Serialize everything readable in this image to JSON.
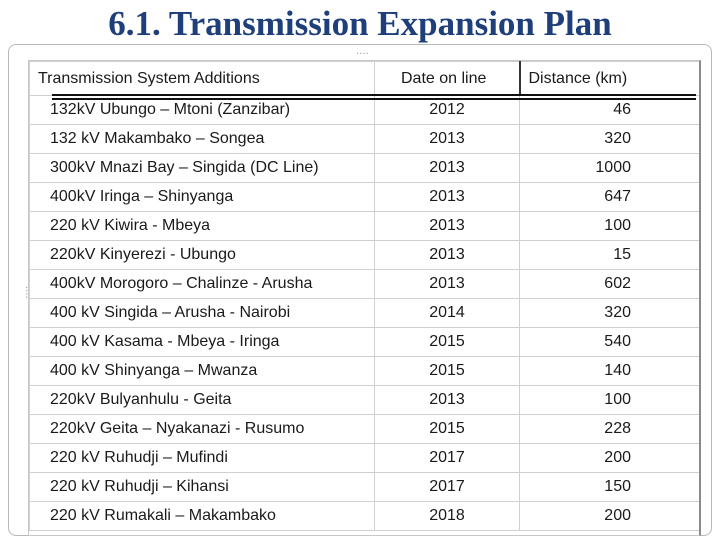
{
  "slide": {
    "title": "6.1. Transmission Expansion Plan"
  },
  "table": {
    "headers": [
      "Transmission System Additions",
      "Date on line",
      "Distance (km)"
    ],
    "rows": [
      [
        "132kV Ubungo – Mtoni (Zanzibar)",
        "2012",
        "46"
      ],
      [
        "132 kV Makambako – Songea",
        "2013",
        "320"
      ],
      [
        "300kV Mnazi Bay – Singida (DC Line)",
        "2013",
        "1000"
      ],
      [
        "400kV Iringa – Shinyanga",
        "2013",
        "647"
      ],
      [
        "220 kV Kiwira - Mbeya",
        "2013",
        "100"
      ],
      [
        " 220kV Kinyerezi - Ubungo",
        "2013",
        "15"
      ],
      [
        "400kV Morogoro – Chalinze - Arusha",
        "2013",
        "602"
      ],
      [
        "400 kV  Singida – Arusha - Nairobi",
        "2014",
        "320"
      ],
      [
        "400 kV  Kasama - Mbeya - Iringa",
        "2015",
        "540"
      ],
      [
        "400 kV  Shinyanga – Mwanza",
        "2015",
        "140"
      ],
      [
        "220kV Bulyanhulu - Geita",
        "2013",
        "100"
      ],
      [
        "220kV  Geita – Nyakanazi - Rusumo",
        "2015",
        "228"
      ],
      [
        "220 kV  Ruhudji – Mufindi",
        "2017",
        "200"
      ],
      [
        "220 kV  Ruhudji – Kihansi",
        "2017",
        "150"
      ],
      [
        "220 kV   Rumakali – Makambako",
        "2018",
        "200"
      ]
    ]
  }
}
